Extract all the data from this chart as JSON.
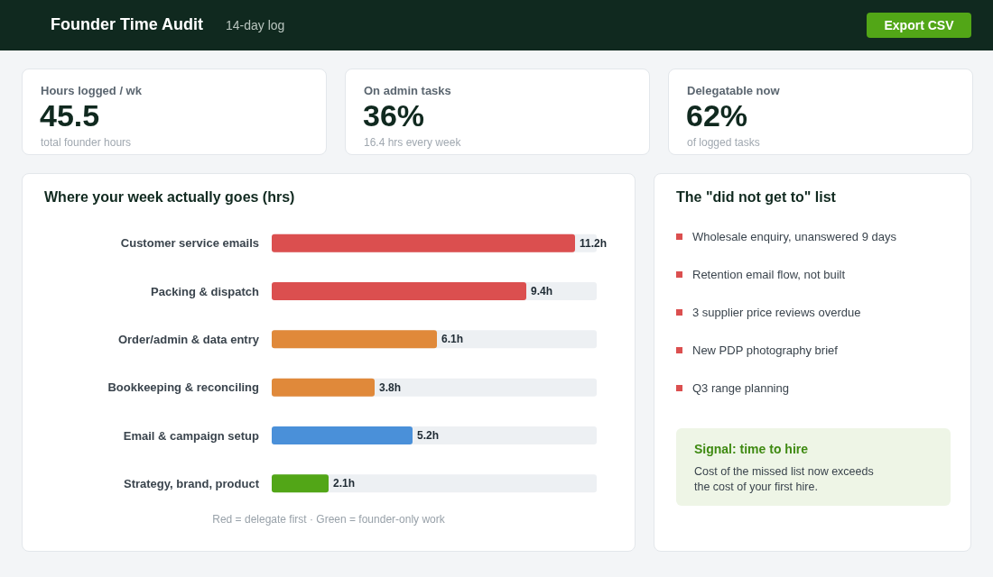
{
  "chart_data": [
    {
      "type": "other",
      "title": "Founder Time Audit",
      "subtitle": "14-day log",
      "annotations": [
        "Export CSV"
      ]
    },
    {
      "type": "other",
      "title": "Hours logged / wk",
      "annotations": [
        "45.5",
        "total founder hours"
      ]
    },
    {
      "type": "other",
      "title": "On admin tasks",
      "annotations": [
        "36%",
        "16.4 hrs every week"
      ]
    },
    {
      "type": "other",
      "title": "Delegatable now",
      "annotations": [
        "62%",
        "of logged tasks"
      ]
    },
    {
      "type": "bar",
      "orientation": "horizontal",
      "title": "Where your week actually goes (hrs)",
      "categories": [
        "Customer service emails",
        "Packing & dispatch",
        "Order/admin & data entry",
        "Bookkeeping & reconciling",
        "Email & campaign setup",
        "Strategy, brand, product"
      ],
      "values": [
        11.2,
        9.4,
        6.1,
        3.8,
        5.2,
        2.1
      ],
      "colors": [
        "#db4f4f",
        "#db4f4f",
        "#e0893a",
        "#e0893a",
        "#4a90d9",
        "#52a617"
      ],
      "value_labels": [
        "11.2h",
        "9.4h",
        "6.1h",
        "3.8h",
        "5.2h",
        "2.1h"
      ],
      "xlim": [
        0,
        12
      ],
      "tick_labels": "y",
      "grid": false,
      "annotations": [
        "Red = delegate first  ·  Green = founder-only work"
      ]
    },
    {
      "type": "other",
      "title": "The \"did not get to\" list",
      "annotations": [
        "Wholesale enquiry, unanswered 9 days",
        "Retention email flow, not built",
        "3 supplier price reviews overdue",
        "New PDP photography brief",
        "Q3 range planning"
      ]
    },
    {
      "type": "other",
      "title": "Signal: time to hire",
      "annotations": [
        "Cost of the missed list now exceeds the cost of your first hire."
      ]
    }
  ]
}
